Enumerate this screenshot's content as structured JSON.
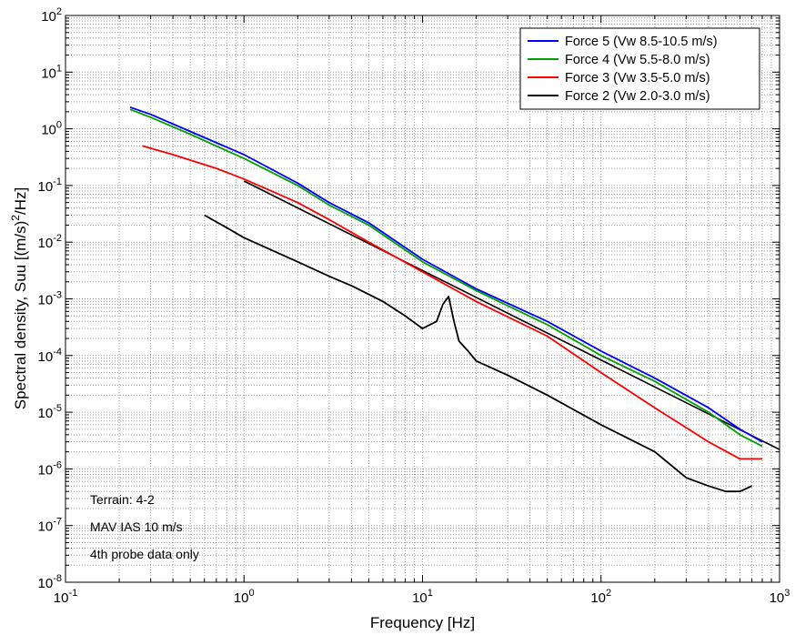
{
  "chart_data": {
    "type": "line",
    "xscale": "log",
    "yscale": "log",
    "xlim": [
      0.1,
      1000
    ],
    "ylim": [
      1e-08,
      100
    ],
    "grid": true,
    "legend_position": "top-right",
    "xlabel": "Frequency [Hz]",
    "ylabel_main": "Spectral density, Suu [(m/s)",
    "ylabel_sup": "2",
    "ylabel_tail": "/Hz]",
    "x_ticks": [
      {
        "base": "10",
        "exp": "-1"
      },
      {
        "base": "10",
        "exp": "0"
      },
      {
        "base": "10",
        "exp": "1"
      },
      {
        "base": "10",
        "exp": "2"
      },
      {
        "base": "10",
        "exp": "3"
      }
    ],
    "y_ticks": [
      {
        "base": "10",
        "exp": "-8"
      },
      {
        "base": "10",
        "exp": "-7"
      },
      {
        "base": "10",
        "exp": "-6"
      },
      {
        "base": "10",
        "exp": "-5"
      },
      {
        "base": "10",
        "exp": "-4"
      },
      {
        "base": "10",
        "exp": "-3"
      },
      {
        "base": "10",
        "exp": "-2"
      },
      {
        "base": "10",
        "exp": "-1"
      },
      {
        "base": "10",
        "exp": "0"
      },
      {
        "base": "10",
        "exp": "1"
      },
      {
        "base": "10",
        "exp": "2"
      }
    ],
    "annotations": [
      "Terrain: 4-2",
      "MAV IAS 10 m/s",
      "4th probe data only"
    ],
    "series": [
      {
        "name": "Force 5 (Vw 8.5-10.5 m/s)",
        "color": "#0000ff",
        "x": [
          0.23,
          0.3,
          0.5,
          1,
          2,
          3,
          5,
          10,
          20,
          50,
          100,
          200,
          400,
          600,
          800
        ],
        "y": [
          2.4,
          1.8,
          0.9,
          0.35,
          0.11,
          0.05,
          0.022,
          0.005,
          0.0015,
          0.0004,
          0.00012,
          4e-05,
          1.2e-05,
          5e-06,
          3e-06
        ]
      },
      {
        "name": "Force 4 (Vw 5.5-8.0 m/s)",
        "color": "#00a000",
        "x": [
          0.23,
          0.3,
          0.5,
          1,
          2,
          3,
          5,
          10,
          20,
          50,
          100,
          200,
          400,
          600,
          800
        ],
        "y": [
          2.2,
          1.6,
          0.8,
          0.3,
          0.1,
          0.045,
          0.02,
          0.0045,
          0.0014,
          0.00035,
          0.0001,
          3.5e-05,
          1e-05,
          4e-06,
          2.5e-06
        ]
      },
      {
        "name": "Force 3 (Vw 3.5-5.0 m/s)",
        "color": "#ff0000",
        "x": [
          0.27,
          0.4,
          0.7,
          1,
          2,
          3,
          5,
          10,
          20,
          50,
          100,
          200,
          400,
          600,
          800
        ],
        "y": [
          0.5,
          0.35,
          0.2,
          0.13,
          0.05,
          0.025,
          0.01,
          0.003,
          0.0009,
          0.00022,
          5e-05,
          1.2e-05,
          3e-06,
          1.5e-06,
          1.5e-06
        ]
      },
      {
        "name": "Force 2 (Vw 2.0-3.0 m/s)",
        "color": "#000000",
        "x": [
          0.6,
          0.8,
          1,
          2,
          3,
          4,
          5,
          6,
          8,
          10,
          12,
          13,
          14,
          15,
          16,
          18,
          20,
          30,
          50,
          100,
          200,
          300,
          400,
          500,
          600,
          700
        ],
        "y": [
          0.03,
          0.018,
          0.012,
          0.0045,
          0.0025,
          0.0017,
          0.0012,
          0.0009,
          0.0005,
          0.0003,
          0.0004,
          0.0008,
          0.0011,
          0.0004,
          0.00018,
          0.00012,
          8e-05,
          4.5e-05,
          2e-05,
          6e-06,
          2e-06,
          7e-07,
          5e-07,
          4e-07,
          4e-07,
          5e-07
        ]
      }
    ],
    "extra_lines": [
      {
        "color": "#000000",
        "x": [
          1,
          1000
        ],
        "y": [
          0.12,
          2.2e-06
        ]
      }
    ]
  }
}
